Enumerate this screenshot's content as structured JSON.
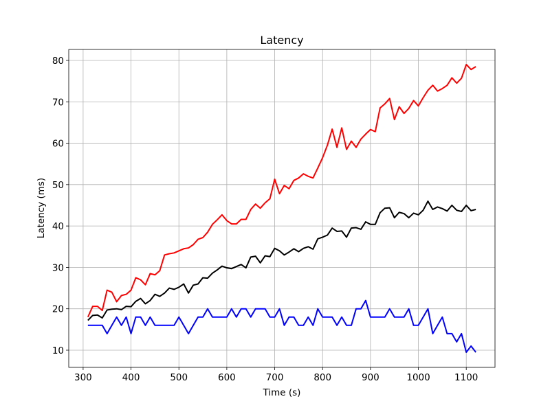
{
  "chart_data": {
    "type": "line",
    "title": "Latency",
    "x_label": "Time (s)",
    "y_label": "Latency (ms)",
    "x": [
      310,
      320,
      330,
      340,
      350,
      360,
      370,
      380,
      390,
      400,
      410,
      420,
      430,
      440,
      450,
      460,
      470,
      480,
      490,
      500,
      510,
      520,
      530,
      540,
      550,
      560,
      570,
      580,
      590,
      600,
      610,
      620,
      630,
      640,
      650,
      660,
      670,
      680,
      690,
      700,
      710,
      720,
      730,
      740,
      750,
      760,
      770,
      780,
      790,
      800,
      810,
      820,
      830,
      840,
      850,
      860,
      870,
      880,
      890,
      900,
      910,
      920,
      930,
      940,
      950,
      960,
      970,
      980,
      990,
      1000,
      1010,
      1020,
      1030,
      1040,
      1050,
      1060,
      1070,
      1080,
      1090,
      1100,
      1110,
      1120
    ],
    "series": [
      {
        "color": "#ff0000",
        "values": [
          18,
          20.6,
          20.6,
          19.6,
          24.5,
          24,
          21.7,
          23.2,
          23.5,
          24.5,
          27.5,
          27,
          25.8,
          28.5,
          28.2,
          29.2,
          33,
          33.3,
          33.5,
          34,
          34.5,
          34.7,
          35.5,
          36.8,
          37.2,
          38.5,
          40.4,
          41.5,
          42.7,
          41.3,
          40.5,
          40.5,
          41.6,
          41.6,
          44,
          45.3,
          44.3,
          45.6,
          46.6,
          51.3,
          47.8,
          49.8,
          49,
          51,
          51.6,
          52.6,
          52,
          51.6,
          54,
          56.5,
          59.5,
          63.4,
          59,
          63.7,
          58.5,
          60.5,
          59,
          61,
          62.2,
          63.3,
          62.8,
          68.5,
          69.5,
          70.8,
          65.7,
          68.8,
          67.2,
          68.4,
          70.3,
          69,
          71,
          72.8,
          74,
          72.6,
          73.2,
          74,
          75.8,
          74.5,
          75.7,
          79,
          77.8,
          78.5
        ]
      },
      {
        "color": "#000000",
        "values": [
          17.2,
          18.4,
          18.5,
          17.8,
          19.7,
          19.9,
          20,
          19.8,
          20.6,
          20.5,
          21.8,
          22.5,
          21.2,
          22,
          23.5,
          23,
          23.8,
          25,
          24.7,
          25.2,
          26,
          23.8,
          25.7,
          26,
          27.5,
          27.4,
          28.6,
          29.4,
          30.3,
          29.9,
          29.7,
          30.2,
          30.7,
          29.9,
          32.5,
          32.7,
          31.1,
          32.8,
          32.6,
          34.6,
          34,
          33,
          33.7,
          34.5,
          33.8,
          34.6,
          35,
          34.4,
          36.9,
          37.3,
          37.8,
          39.5,
          38.7,
          38.8,
          37.3,
          39.5,
          39.6,
          39.2,
          41,
          40.4,
          40.4,
          43.2,
          44.3,
          44.4,
          42,
          43.3,
          43,
          42,
          43.1,
          42.7,
          43.8,
          46,
          44,
          44.6,
          44.2,
          43.6,
          45,
          43.8,
          43.5,
          45,
          43.7,
          44
        ]
      },
      {
        "color": "#0000ff",
        "values": [
          16,
          16,
          16,
          16,
          14,
          16,
          18,
          16,
          18,
          14,
          18,
          18,
          16,
          18,
          16,
          16,
          16,
          16,
          16,
          18,
          16,
          14,
          16,
          18,
          18,
          20,
          18,
          18,
          18,
          18,
          20,
          18,
          20,
          20,
          18,
          20,
          20,
          20,
          18,
          18,
          20,
          16,
          18,
          18,
          16,
          16,
          18,
          16,
          20,
          18,
          18,
          18,
          16,
          18,
          16,
          16,
          20,
          20,
          22,
          18,
          18,
          18,
          18,
          20,
          18,
          18,
          18,
          20,
          16,
          16,
          18,
          20,
          14,
          16,
          18,
          14,
          14,
          12,
          14,
          9.5,
          11,
          9.5
        ]
      }
    ],
    "xlim": [
      270,
      1160
    ],
    "ylim": [
      5.85,
      82.65
    ],
    "xticks": [
      300,
      400,
      500,
      600,
      700,
      800,
      900,
      1000,
      1100
    ],
    "yticks": [
      10,
      20,
      30,
      40,
      50,
      60,
      70,
      80
    ],
    "grid": true
  }
}
